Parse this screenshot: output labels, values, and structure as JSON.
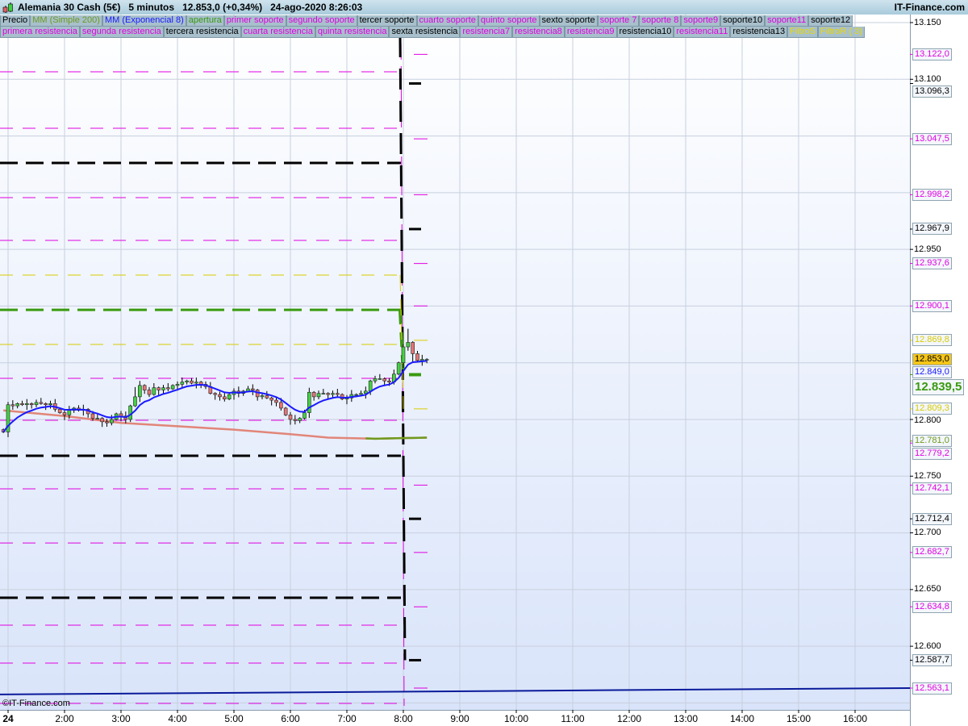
{
  "header": {
    "title": "Alemania 30 Cash (5€)   5 minutos   12.853,0 (+0,34%)   24-ago-2020 8:26:03",
    "brand": "IT-Finance.com",
    "watermark": "©IT-Finance.com"
  },
  "legend_row1": [
    {
      "label": "Precio",
      "color": "#000000"
    },
    {
      "label": "MM (Simple 200)",
      "color": "#6f9a1c"
    },
    {
      "label": "MM (Exponencial 8)",
      "color": "#1a1aff"
    },
    {
      "label": "apertura",
      "color": "#3a9a10"
    },
    {
      "label": "primer soporte",
      "color": "#e000e0"
    },
    {
      "label": "segundo soporte",
      "color": "#e000e0"
    },
    {
      "label": "tercer soporte",
      "color": "#000000"
    },
    {
      "label": "cuarto soporte",
      "color": "#e000e0"
    },
    {
      "label": "quinto soporte",
      "color": "#e000e0"
    },
    {
      "label": "sexto soporte",
      "color": "#000000"
    },
    {
      "label": "soporte 7",
      "color": "#e000e0"
    },
    {
      "label": "soporte 8",
      "color": "#e000e0"
    },
    {
      "label": "soporte9",
      "color": "#e000e0"
    },
    {
      "label": "soporte10",
      "color": "#000000"
    },
    {
      "label": "soporte11",
      "color": "#e000e0"
    },
    {
      "label": "soporte12",
      "color": "#000000"
    }
  ],
  "legend_row2": [
    {
      "label": "primera resistencia",
      "color": "#e000e0"
    },
    {
      "label": "segunda resistencia",
      "color": "#e000e0"
    },
    {
      "label": "tercera resistencia",
      "color": "#000000"
    },
    {
      "label": "cuarta resistencia",
      "color": "#e000e0"
    },
    {
      "label": "quinta resistencia",
      "color": "#e000e0"
    },
    {
      "label": "sexta resistencia",
      "color": "#000000"
    },
    {
      "label": "resistencia7",
      "color": "#e000e0"
    },
    {
      "label": "resistencia8",
      "color": "#e000e0"
    },
    {
      "label": "resistencia9",
      "color": "#e000e0"
    },
    {
      "label": "resistencia10",
      "color": "#000000"
    },
    {
      "label": "resistencia11",
      "color": "#e000e0"
    },
    {
      "label": "resistencia13",
      "color": "#000000"
    },
    {
      "label": "FiltroS",
      "color": "#e8d800"
    },
    {
      "label": "FiltroR ( 3)",
      "color": "#e8d800"
    }
  ],
  "chart_data": {
    "type": "candlestick",
    "start_time": "0:55",
    "interval_minutes": 5,
    "closes": [
      12789,
      12813,
      12812,
      12814,
      12813,
      12814,
      12813,
      12815,
      12814,
      12813,
      12814,
      12809,
      12806,
      12804,
      12808,
      12810,
      12808,
      12809,
      12805,
      12801,
      12801,
      12798,
      12797,
      12800,
      12805,
      12803,
      12800,
      12812,
      12820,
      12830,
      12826,
      12822,
      12828,
      12826,
      12828,
      12827,
      12830,
      12831,
      12833,
      12834,
      12832,
      12833,
      12831,
      12829,
      12823,
      12822,
      12820,
      12818,
      12822,
      12825,
      12823,
      12825,
      12827,
      12826,
      12820,
      12821,
      12819,
      12817,
      12815,
      12810,
      12804,
      12800,
      12799,
      12801,
      12806,
      12824,
      12820,
      12823,
      12823,
      12822,
      12823,
      12822,
      12818,
      12819,
      12822,
      12822,
      12823,
      12825,
      12834,
      12836,
      12836,
      12834,
      12833,
      12840,
      12850,
      12864,
      12868,
      12858,
      12852,
      12853,
      12853
    ],
    "ylim": [
      12535,
      13160
    ],
    "y_ticks": [
      "13.150",
      "13.100",
      "12.950",
      "12.800",
      "12.750",
      "12.700",
      "12.650",
      "12.600"
    ],
    "y_tick_values": [
      13150,
      13100,
      12950,
      12800,
      12750,
      12700,
      12650,
      12600
    ],
    "x_ticks": [
      "24",
      "2:00",
      "3:00",
      "4:00",
      "5:00",
      "6:00",
      "7:00",
      "8:00",
      "9:00",
      "10:00",
      "11:00",
      "12:00",
      "13:00",
      "14:00",
      "15:00",
      "16:00"
    ],
    "x_tick_hours": [
      1,
      2,
      3,
      4,
      5,
      6,
      7,
      8,
      9,
      10,
      11,
      12,
      13,
      14,
      15,
      16
    ],
    "sma200": [
      [
        "0:55",
        12808
      ],
      [
        "2:00",
        12803
      ],
      [
        "3:00",
        12797
      ],
      [
        "4:00",
        12794
      ],
      [
        "5:00",
        12791
      ],
      [
        "6:00",
        12787
      ],
      [
        "6:40",
        12784
      ],
      [
        "7:30",
        12783
      ],
      [
        "8:25",
        12784
      ]
    ],
    "sma200_green_from": "7:20",
    "ema_period": 8,
    "level_left_until": "8:00",
    "levels_left": [
      {
        "price": 13106.6,
        "color": "#e000e0",
        "style": "thin"
      },
      {
        "price": 13056.8,
        "color": "#e000e0",
        "style": "thin"
      },
      {
        "price": 12995.6,
        "color": "#e000e0",
        "style": "thin"
      },
      {
        "price": 12957.9,
        "color": "#e000e0",
        "style": "thin"
      },
      {
        "price": 12836.3,
        "color": "#e000e0",
        "style": "thin"
      },
      {
        "price": 12799.3,
        "color": "#e000e0",
        "style": "thin"
      },
      {
        "price": 12738.8,
        "color": "#e000e0",
        "style": "thin"
      },
      {
        "price": 12691.1,
        "color": "#e000e0",
        "style": "thin"
      },
      {
        "price": 12618.6,
        "color": "#e000e0",
        "style": "thin"
      },
      {
        "price": 12585.2,
        "color": "#e000e0",
        "style": "thin"
      },
      {
        "price": 12549.6,
        "color": "#e000e0",
        "style": "thin"
      },
      {
        "price": 12927.3,
        "color": "#d8cc00",
        "style": "thin"
      },
      {
        "price": 12866.2,
        "color": "#d8cc00",
        "style": "thin"
      },
      {
        "price": 13026.2,
        "color": "#000000",
        "style": "thick"
      },
      {
        "price": 12768.0,
        "color": "#000000",
        "style": "thick"
      },
      {
        "price": 12642.8,
        "color": "#000000",
        "style": "thick"
      },
      {
        "price": 12896.7,
        "color": "#3a9a10",
        "style": "thick"
      }
    ],
    "levels_right": [
      {
        "price": 13122.0,
        "label": "13.122,0",
        "color": "#e000e0",
        "style": "thin"
      },
      {
        "price": 13096.3,
        "label": "13.096,3",
        "color": "#000000",
        "style": "thick"
      },
      {
        "price": 13047.5,
        "label": "13.047,5",
        "color": "#e000e0",
        "style": "thin"
      },
      {
        "price": 12998.2,
        "label": "12.998,2",
        "color": "#e000e0",
        "style": "thin"
      },
      {
        "price": 12967.9,
        "label": "12.967,9",
        "color": "#000000",
        "style": "thick"
      },
      {
        "price": 12937.6,
        "label": "12.937,6",
        "color": "#e000e0",
        "style": "thin"
      },
      {
        "price": 12900.1,
        "label": "12.900,1",
        "color": "#e000e0",
        "style": "thin"
      },
      {
        "price": 12869.8,
        "label": "12.869,8",
        "color": "#d8cc00",
        "style": "thin"
      },
      {
        "price": 12839.5,
        "label": "12.839,5",
        "color": "#3a9a10",
        "style": "thick",
        "big": true
      },
      {
        "price": 12809.3,
        "label": "12.809,3",
        "color": "#d8cc00",
        "style": "thin"
      },
      {
        "price": 12781.0,
        "label": "12.781,0",
        "color": "#6f9a1c",
        "style": "line"
      },
      {
        "price": 12779.2,
        "label": "12.779,2",
        "color": "#e000e0",
        "style": "none"
      },
      {
        "price": 12742.1,
        "label": "12.742,1",
        "color": "#e000e0",
        "style": "thin"
      },
      {
        "price": 12712.4,
        "label": "12.712,4",
        "color": "#000000",
        "style": "thick"
      },
      {
        "price": 12682.7,
        "label": "12.682,7",
        "color": "#e000e0",
        "style": "thin"
      },
      {
        "price": 12634.8,
        "label": "12.634,8",
        "color": "#e000e0",
        "style": "thin"
      },
      {
        "price": 12587.7,
        "label": "12.587,7",
        "color": "#000000",
        "style": "thick"
      },
      {
        "price": 12563.1,
        "label": "12.563,1",
        "color": "#e000e0",
        "style": "thin"
      }
    ],
    "price_label": {
      "price": 12853.0,
      "label": "12.853,0",
      "color": "#000000",
      "bg": "#f5c518"
    },
    "ema_label": {
      "price": 12849.0,
      "label": "12.849,0",
      "color": "#1a1aff"
    },
    "navy_line": {
      "start": 12557.5,
      "end": 12563.1,
      "color": "#0a1a9a"
    }
  }
}
